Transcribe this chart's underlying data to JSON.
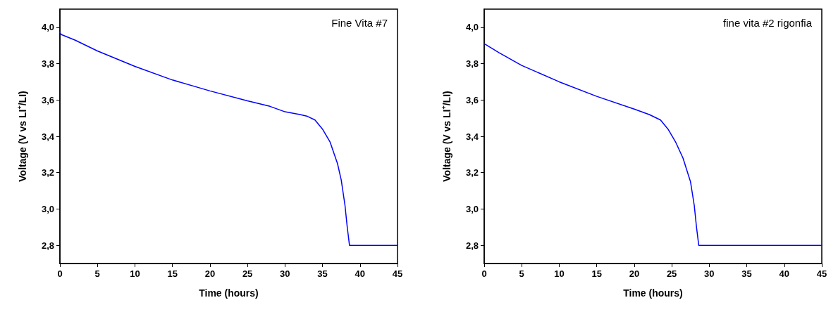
{
  "chart_data": [
    {
      "type": "line",
      "xlabel": "Time (hours)",
      "ylabel": "Voltage (V vs LI$^{+}$/LI)",
      "annotations": [
        "Fine Vita #7"
      ],
      "series": [
        {
          "color": "#0000ff",
          "x": [
            0,
            0.2,
            2,
            5,
            10,
            15,
            20,
            25,
            28,
            30,
            32,
            33,
            34,
            35,
            36,
            37,
            37.5,
            38,
            38.3,
            38.6,
            45
          ],
          "values": [
            3.97,
            3.96,
            3.93,
            3.87,
            3.785,
            3.71,
            3.65,
            3.595,
            3.565,
            3.535,
            3.52,
            3.51,
            3.49,
            3.44,
            3.37,
            3.25,
            3.16,
            3.02,
            2.9,
            2.8,
            2.8
          ]
        }
      ],
      "xlim": [
        0,
        45
      ],
      "xticks": [
        0,
        5,
        10,
        15,
        20,
        25,
        30,
        35,
        40,
        45
      ],
      "ylim": [
        2.7,
        4.1
      ],
      "yticks": [
        {
          "value": 2.8,
          "label": "2,8"
        },
        {
          "value": 3.0,
          "label": "3,0"
        },
        {
          "value": 3.2,
          "label": "3,2"
        },
        {
          "value": 3.4,
          "label": "3,4"
        },
        {
          "value": 3.6,
          "label": "3,6"
        },
        {
          "value": 3.8,
          "label": "3,8"
        },
        {
          "value": 4.0,
          "label": "4,0"
        }
      ],
      "grid": false,
      "marker": "none",
      "line_style": "solid"
    },
    {
      "type": "line",
      "xlabel": "Time (hours)",
      "ylabel": "Voltage (V vs LI$^{+}$/LI)",
      "annotations": [
        "fine vita #2 rigonfia"
      ],
      "series": [
        {
          "color": "#0000ff",
          "x": [
            0,
            2,
            5,
            10,
            15,
            20,
            22,
            23.5,
            24.5,
            25.5,
            26.5,
            27.5,
            28,
            28.3,
            28.6,
            45
          ],
          "values": [
            3.91,
            3.86,
            3.79,
            3.7,
            3.62,
            3.55,
            3.52,
            3.49,
            3.44,
            3.37,
            3.28,
            3.15,
            3.02,
            2.9,
            2.8,
            2.8
          ]
        }
      ],
      "xlim": [
        0,
        45
      ],
      "xticks": [
        0,
        5,
        10,
        15,
        20,
        25,
        30,
        35,
        40,
        45
      ],
      "ylim": [
        2.7,
        4.1
      ],
      "yticks": [
        {
          "value": 2.8,
          "label": "2,8"
        },
        {
          "value": 3.0,
          "label": "3,0"
        },
        {
          "value": 3.2,
          "label": "3,2"
        },
        {
          "value": 3.4,
          "label": "3,4"
        },
        {
          "value": 3.6,
          "label": "3,6"
        },
        {
          "value": 3.8,
          "label": "3,8"
        },
        {
          "value": 4.0,
          "label": "4,0"
        }
      ],
      "grid": false,
      "marker": "none",
      "line_style": "solid"
    }
  ]
}
